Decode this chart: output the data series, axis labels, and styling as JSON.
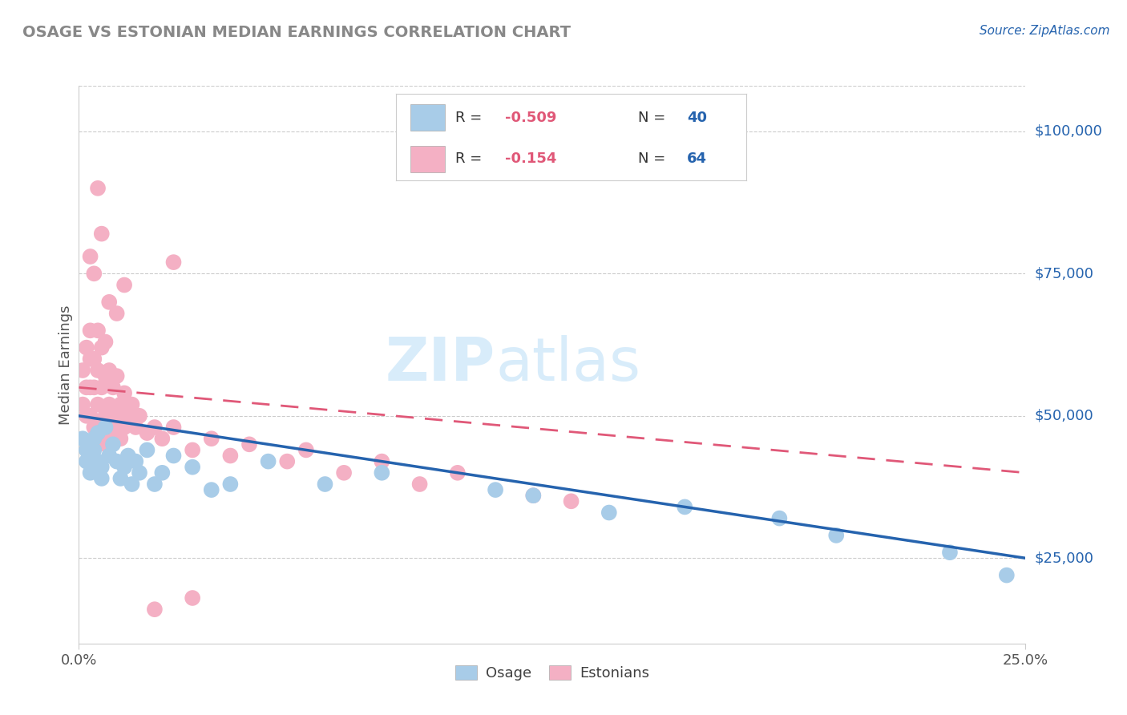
{
  "title": "OSAGE VS ESTONIAN MEDIAN EARNINGS CORRELATION CHART",
  "source": "Source: ZipAtlas.com",
  "ylabel": "Median Earnings",
  "ytick_labels": [
    "$25,000",
    "$50,000",
    "$75,000",
    "$100,000"
  ],
  "ytick_values": [
    25000,
    50000,
    75000,
    100000
  ],
  "legend_labels": [
    "Osage",
    "Estonians"
  ],
  "legend_r": [
    -0.509,
    -0.154
  ],
  "legend_n": [
    40,
    64
  ],
  "xlim": [
    0.0,
    0.25
  ],
  "ylim": [
    10000,
    108000
  ],
  "osage_color": "#A8CCE8",
  "estonian_color": "#F4B0C4",
  "osage_line_color": "#2563AE",
  "estonian_line_color": "#E05878",
  "watermark_color": "#D8ECFA",
  "title_color": "#888888",
  "source_color": "#2563AE",
  "grid_color": "#CCCCCC",
  "osage_x": [
    0.001,
    0.002,
    0.002,
    0.003,
    0.003,
    0.003,
    0.004,
    0.004,
    0.005,
    0.005,
    0.006,
    0.006,
    0.007,
    0.008,
    0.009,
    0.01,
    0.011,
    0.012,
    0.013,
    0.014,
    0.015,
    0.016,
    0.018,
    0.02,
    0.022,
    0.025,
    0.03,
    0.035,
    0.04,
    0.05,
    0.065,
    0.08,
    0.11,
    0.12,
    0.14,
    0.16,
    0.185,
    0.2,
    0.23,
    0.245
  ],
  "osage_y": [
    46000,
    44000,
    42000,
    45000,
    43000,
    40000,
    46000,
    44000,
    47000,
    42000,
    41000,
    39000,
    48000,
    43000,
    45000,
    42000,
    39000,
    41000,
    43000,
    38000,
    42000,
    40000,
    44000,
    38000,
    40000,
    43000,
    41000,
    37000,
    38000,
    42000,
    38000,
    40000,
    37000,
    36000,
    33000,
    34000,
    32000,
    29000,
    26000,
    22000
  ],
  "estonian_x": [
    0.001,
    0.001,
    0.002,
    0.002,
    0.002,
    0.003,
    0.003,
    0.003,
    0.003,
    0.004,
    0.004,
    0.004,
    0.005,
    0.005,
    0.005,
    0.005,
    0.006,
    0.006,
    0.006,
    0.007,
    0.007,
    0.007,
    0.007,
    0.008,
    0.008,
    0.008,
    0.009,
    0.009,
    0.01,
    0.01,
    0.011,
    0.011,
    0.012,
    0.012,
    0.013,
    0.014,
    0.015,
    0.016,
    0.018,
    0.02,
    0.022,
    0.025,
    0.03,
    0.035,
    0.04,
    0.045,
    0.055,
    0.06,
    0.07,
    0.08,
    0.09,
    0.1,
    0.12,
    0.13,
    0.003,
    0.004,
    0.005,
    0.006,
    0.008,
    0.01,
    0.02,
    0.03,
    0.012,
    0.025
  ],
  "estonian_y": [
    58000,
    52000,
    62000,
    55000,
    50000,
    65000,
    60000,
    55000,
    50000,
    60000,
    55000,
    48000,
    65000,
    58000,
    52000,
    47000,
    62000,
    55000,
    48000,
    63000,
    57000,
    50000,
    45000,
    58000,
    52000,
    46000,
    55000,
    48000,
    57000,
    50000,
    52000,
    46000,
    54000,
    48000,
    50000,
    52000,
    48000,
    50000,
    47000,
    48000,
    46000,
    48000,
    44000,
    46000,
    43000,
    45000,
    42000,
    44000,
    40000,
    42000,
    38000,
    40000,
    36000,
    35000,
    78000,
    75000,
    90000,
    82000,
    70000,
    68000,
    16000,
    18000,
    73000,
    77000
  ]
}
